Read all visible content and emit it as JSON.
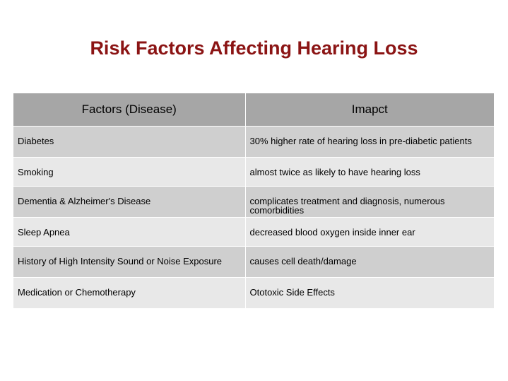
{
  "title": "Risk Factors Affecting Hearing Loss",
  "table": {
    "headers": [
      "Factors (Disease)",
      "Imapct"
    ],
    "rows": [
      {
        "factor": "Diabetes",
        "impact": "30% higher rate of hearing loss in pre-diabetic patients"
      },
      {
        "factor": "Smoking",
        "impact": "almost twice as likely to have hearing loss"
      },
      {
        "factor": "Dementia & Alzheimer's Disease",
        "impact": "complicates treatment and diagnosis, numerous comorbidities"
      },
      {
        "factor": "Sleep Apnea",
        "impact": "decreased blood oxygen inside inner ear"
      },
      {
        "factor": "History of High Intensity Sound or Noise Exposure",
        "impact": "causes cell death/damage"
      },
      {
        "factor": "Medication or Chemotherapy",
        "impact": "Ototoxic Side Effects"
      }
    ]
  },
  "colors": {
    "title": "#8b1414",
    "header_bg": "#a6a6a6",
    "row_dark": "#cfcfcf",
    "row_light": "#e8e8e8"
  }
}
